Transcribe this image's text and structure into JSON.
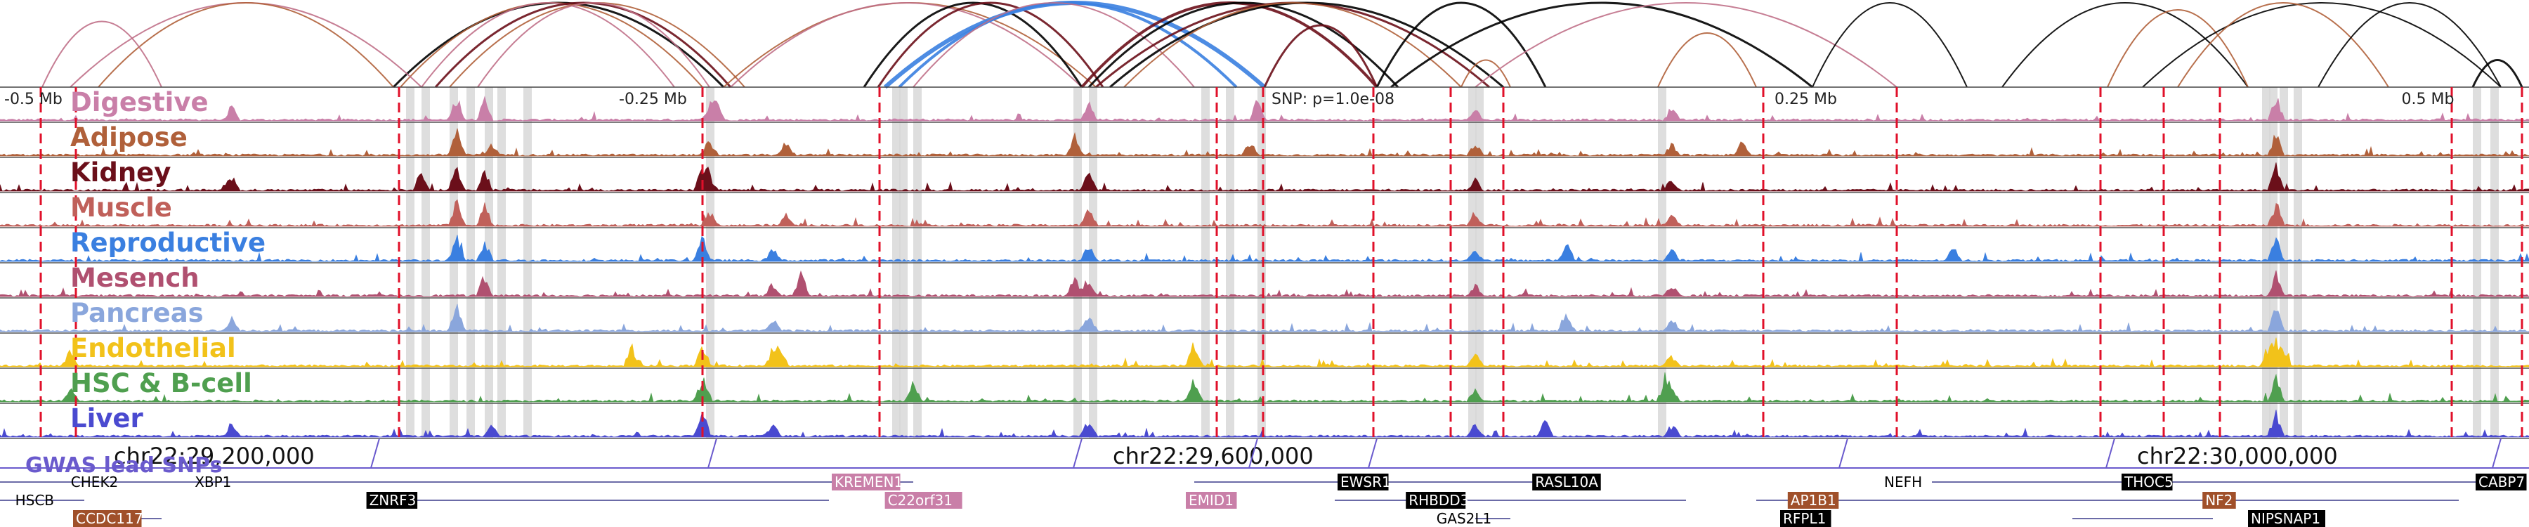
{
  "browser": {
    "offset_labels": [
      {
        "text": "-0.5 Mb",
        "pos": 0.0
      },
      {
        "text": "-0.25 Mb",
        "pos": 0.25
      },
      {
        "text": "0.25 Mb",
        "pos": 0.72
      },
      {
        "text": "0.5 Mb",
        "pos": 0.975
      }
    ],
    "snp_label": "SNP: p=1.0e-08",
    "genome_axis": [
      {
        "text": "chr22:29,200,000",
        "pos": 0.045
      },
      {
        "text": "chr22:29,600,000",
        "pos": 0.44
      },
      {
        "text": "chr22:30,000,000",
        "pos": 0.845
      }
    ],
    "gwas_label": "GWAS lead SNPs",
    "tracks": [
      {
        "name": "Digestive",
        "color": "#c97fa8"
      },
      {
        "name": "Adipose",
        "color": "#b0603a"
      },
      {
        "name": "Kidney",
        "color": "#6b0f1a"
      },
      {
        "name": "Muscle",
        "color": "#c0605a"
      },
      {
        "name": "Reproductive",
        "color": "#3a7fe0"
      },
      {
        "name": "Mesench",
        "color": "#b05070"
      },
      {
        "name": "Pancreas",
        "color": "#8aa6dc"
      },
      {
        "name": "Endothelial",
        "color": "#f2c21a"
      },
      {
        "name": "HSC & B-cell",
        "color": "#4f9f4f"
      },
      {
        "name": "Liver",
        "color": "#4a4ad0"
      }
    ],
    "genes": [
      {
        "name": "CHEK2",
        "pos": 0.028,
        "row": 0,
        "style": "plain"
      },
      {
        "name": "XBP1",
        "pos": 0.077,
        "row": 0,
        "style": "plain"
      },
      {
        "name": "KREMEN1",
        "pos": 0.33,
        "row": 0,
        "style": "pink"
      },
      {
        "name": "EWSR1",
        "pos": 0.53,
        "row": 0,
        "style": "black"
      },
      {
        "name": "RASL10A",
        "pos": 0.607,
        "row": 0,
        "style": "black"
      },
      {
        "name": "NEFH",
        "pos": 0.745,
        "row": 0,
        "style": "plain"
      },
      {
        "name": "THOC5",
        "pos": 0.84,
        "row": 0,
        "style": "black"
      },
      {
        "name": "CABP7",
        "pos": 0.98,
        "row": 0,
        "style": "black"
      },
      {
        "name": "HSCB",
        "pos": 0.006,
        "row": 1,
        "style": "plain"
      },
      {
        "name": "ZNRF3",
        "pos": 0.146,
        "row": 1,
        "style": "black"
      },
      {
        "name": "C22orf31",
        "pos": 0.351,
        "row": 1,
        "style": "pink"
      },
      {
        "name": "EMID1",
        "pos": 0.47,
        "row": 1,
        "style": "pink"
      },
      {
        "name": "RHBDD3",
        "pos": 0.557,
        "row": 1,
        "style": "black"
      },
      {
        "name": "AP1B1",
        "pos": 0.708,
        "row": 1,
        "style": "brown"
      },
      {
        "name": "NF2",
        "pos": 0.872,
        "row": 1,
        "style": "brown"
      },
      {
        "name": "CCDC117",
        "pos": 0.03,
        "row": 2,
        "style": "brown"
      },
      {
        "name": "GAS2L1",
        "pos": 0.568,
        "row": 2,
        "style": "plain"
      },
      {
        "name": "RFPL1",
        "pos": 0.705,
        "row": 2,
        "style": "black"
      },
      {
        "name": "NIPSNAP1",
        "pos": 0.89,
        "row": 2,
        "style": "black"
      }
    ],
    "colors": {
      "arc_black": "#000000",
      "arc_brown": "#b0603a",
      "arc_pink": "#c07088",
      "arc_darkred": "#6b0f1a",
      "arc_blue": "#3a7fe0",
      "red_marker": "#e0102a",
      "gray_region": "#d6d6d6",
      "gene_pink": "#c97fa8",
      "gene_brown": "#a0502a",
      "gene_black": "#000000",
      "gene_line": "#3a3a8a",
      "gwas_line": "#6a5acd"
    }
  }
}
